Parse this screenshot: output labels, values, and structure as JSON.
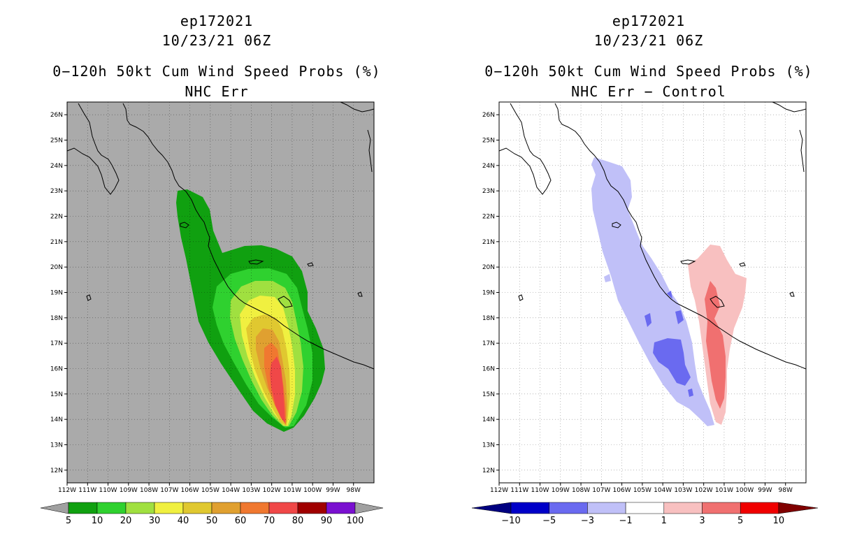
{
  "left_panel": {
    "storm_id": "ep172021",
    "datetime": "10/23/21 06Z",
    "product": "0−120h 50kt Cum Wind Speed Probs (%)",
    "subtitle": "NHC Err",
    "colorbar": {
      "labels": [
        "5",
        "10",
        "20",
        "30",
        "40",
        "50",
        "60",
        "70",
        "80",
        "90",
        "100"
      ],
      "colors": [
        "#10a010",
        "#2fd12f",
        "#a0e040",
        "#f0f040",
        "#e0c830",
        "#e0a030",
        "#f07830",
        "#f04848",
        "#a00000",
        "#7a10d0"
      ],
      "extend_color": "#a0a0a0"
    },
    "background": "#aaaaaa",
    "field": [
      {
        "level": 5,
        "color": "#10a010"
      },
      {
        "level": 10,
        "color": "#2fd12f"
      },
      {
        "level": 20,
        "color": "#a0e040"
      },
      {
        "level": 30,
        "color": "#f0f040"
      },
      {
        "level": 40,
        "color": "#e0c830"
      },
      {
        "level": 50,
        "color": "#e0a030"
      },
      {
        "level": 60,
        "color": "#f07830"
      },
      {
        "level": 70,
        "color": "#f04848"
      }
    ]
  },
  "right_panel": {
    "storm_id": "ep172021",
    "datetime": "10/23/21 06Z",
    "product": "0−120h 50kt Cum Wind Speed Probs (%)",
    "subtitle": "NHC Err − Control",
    "colorbar": {
      "labels": [
        "−10",
        "−5",
        "−3",
        "−1",
        "1",
        "3",
        "5",
        "10"
      ],
      "colors": [
        "#0000c8",
        "#6a6af0",
        "#c0c0f8",
        "#ffffff",
        "#f8c0c0",
        "#f07070",
        "#f00000"
      ],
      "low_extend_color": "#000080",
      "high_extend_color": "#800000"
    },
    "background": "#ffffff"
  },
  "axes": {
    "lon_ticks": [
      "112W",
      "111W",
      "110W",
      "109W",
      "108W",
      "107W",
      "106W",
      "105W",
      "104W",
      "103W",
      "102W",
      "101W",
      "100W",
      "99W",
      "98W"
    ],
    "lat_ticks": [
      "26N",
      "25N",
      "24N",
      "23N",
      "22N",
      "21N",
      "20N",
      "19N",
      "18N",
      "17N",
      "16N",
      "15N",
      "14N",
      "13N",
      "12N"
    ],
    "lon_range": [
      -112,
      -97
    ],
    "lat_range": [
      11.5,
      26.5
    ]
  }
}
